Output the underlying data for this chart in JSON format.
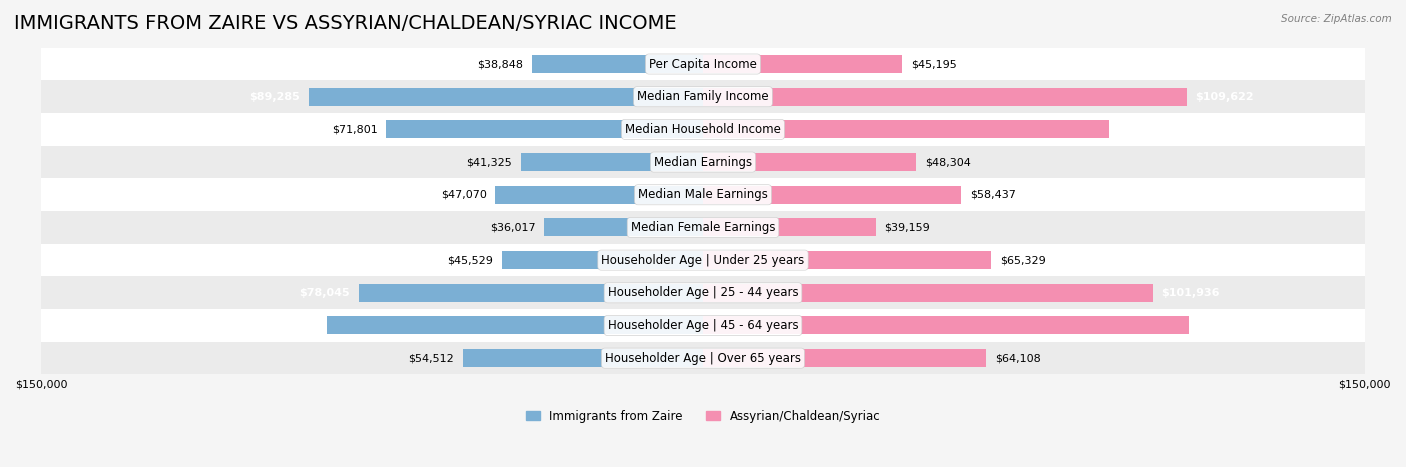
{
  "title": "IMMIGRANTS FROM ZAIRE VS ASSYRIAN/CHALDEAN/SYRIAC INCOME",
  "source": "Source: ZipAtlas.com",
  "categories": [
    "Per Capita Income",
    "Median Family Income",
    "Median Household Income",
    "Median Earnings",
    "Median Male Earnings",
    "Median Female Earnings",
    "Householder Age | Under 25 years",
    "Householder Age | 25 - 44 years",
    "Householder Age | 45 - 64 years",
    "Householder Age | Over 65 years"
  ],
  "zaire_values": [
    38848,
    89285,
    71801,
    41325,
    47070,
    36017,
    45529,
    78045,
    85207,
    54512
  ],
  "assyrian_values": [
    45195,
    109622,
    91991,
    48304,
    58437,
    39159,
    65329,
    101936,
    110201,
    64108
  ],
  "zaire_color": "#7bafd4",
  "assyrian_color": "#f48fb1",
  "zaire_label": "Immigrants from Zaire",
  "assyrian_label": "Assyrian/Chaldean/Syriac",
  "xlim": 150000,
  "bar_height": 0.55,
  "background_color": "#f5f5f5",
  "row_bg_colors": [
    "#ffffff",
    "#ebebeb"
  ],
  "title_fontsize": 14,
  "label_fontsize": 8.5,
  "value_fontsize": 8,
  "axis_label_fontsize": 8
}
